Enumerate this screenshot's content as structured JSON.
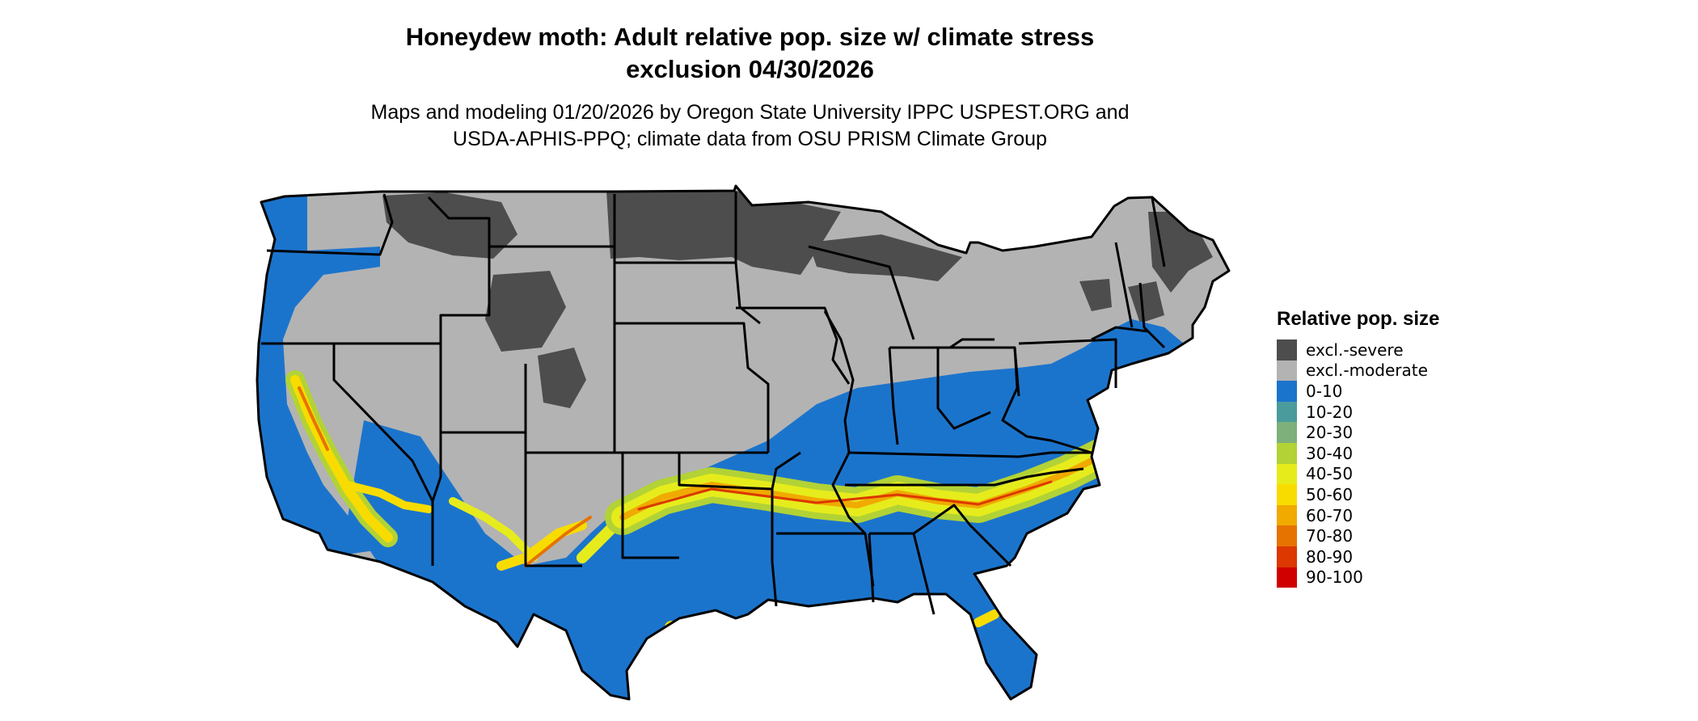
{
  "title_line1": "Honeydew moth: Adult relative pop. size w/ climate stress",
  "title_line2": "exclusion 04/30/2026",
  "subtitle_line1": "Maps and modeling 01/20/2026 by Oregon State University IPPC USPEST.ORG and",
  "subtitle_line2": "USDA-APHIS-PPQ; climate data from OSU PRISM Climate Group",
  "legend": {
    "title": "Relative pop. size",
    "items": [
      {
        "label": "excl.-severe",
        "color": "#4d4d4d"
      },
      {
        "label": "excl.-moderate",
        "color": "#b3b3b3"
      },
      {
        "label": "0-10",
        "color": "#1b74cc"
      },
      {
        "label": "10-20",
        "color": "#4a9c9c"
      },
      {
        "label": "20-30",
        "color": "#7db07a"
      },
      {
        "label": "30-40",
        "color": "#b2d236"
      },
      {
        "label": "40-50",
        "color": "#e6ec1c"
      },
      {
        "label": "50-60",
        "color": "#f8dc00"
      },
      {
        "label": "60-70",
        "color": "#f0aa00"
      },
      {
        "label": "70-80",
        "color": "#e67300"
      },
      {
        "label": "80-90",
        "color": "#dc3800"
      },
      {
        "label": "90-100",
        "color": "#d00000"
      }
    ]
  }
}
